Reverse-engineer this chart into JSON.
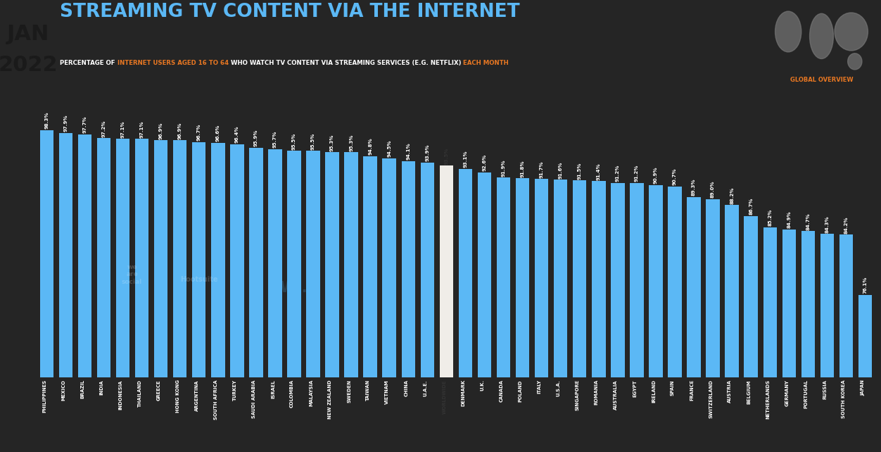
{
  "title": "STREAMING TV CONTENT VIA THE INTERNET",
  "subtitle_parts": [
    {
      "text": "PERCENTAGE OF ",
      "color": "#FFFFFF"
    },
    {
      "text": "INTERNET USERS AGED 16 TO 64",
      "color": "#E87722"
    },
    {
      "text": " WHO WATCH TV CONTENT VIA STREAMING SERVICES (E.G. NETFLIX) ",
      "color": "#FFFFFF"
    },
    {
      "text": "EACH MONTH",
      "color": "#E87722"
    }
  ],
  "date_line1": "JAN",
  "date_line2": "2022",
  "global_label": "GLOBAL OVERVIEW",
  "countries": [
    "PHILIPPINES",
    "MEXICO",
    "BRAZIL",
    "INDIA",
    "INDONESIA",
    "THAILAND",
    "GREECE",
    "HONG KONG",
    "ARGENTINA",
    "SOUTH AFRICA",
    "TURKEY",
    "SAUDI ARABIA",
    "ISRAEL",
    "COLOMBIA",
    "MALAYSIA",
    "NEW ZEALAND",
    "SWEDEN",
    "TAIWAN",
    "VIETNAM",
    "CHINA",
    "U.A.E.",
    "WORLDWIDE",
    "DENMARK",
    "U.K.",
    "CANADA",
    "POLAND",
    "ITALY",
    "U.S.A.",
    "SINGAPORE",
    "ROMANIA",
    "AUSTRALIA",
    "EGYPT",
    "IRELAND",
    "SPAIN",
    "FRANCE",
    "SWITZERLAND",
    "AUSTRIA",
    "BELGIUM",
    "NETHERLANDS",
    "GERMANY",
    "PORTUGAL",
    "RUSSIA",
    "SOUTH KOREA",
    "JAPAN"
  ],
  "values": [
    98.3,
    97.9,
    97.7,
    97.2,
    97.1,
    97.1,
    96.9,
    96.9,
    96.7,
    96.6,
    96.4,
    95.9,
    95.7,
    95.5,
    95.5,
    95.3,
    95.3,
    94.8,
    94.5,
    94.1,
    93.9,
    93.5,
    93.1,
    92.6,
    91.9,
    91.8,
    91.7,
    91.6,
    91.5,
    91.4,
    91.2,
    91.2,
    90.9,
    90.7,
    89.3,
    89.0,
    88.2,
    86.7,
    85.2,
    84.9,
    84.7,
    84.3,
    84.2,
    76.1
  ],
  "worldwide_index": 21,
  "bar_color_normal": "#5BB8F5",
  "bar_color_worldwide": "#F0EDE8",
  "bg_color": "#252525",
  "title_color": "#5BB8F5",
  "date_bg_color": "#5BB8F5",
  "date_text_color": "#1a1a1a",
  "value_label_color": "#FFFFFF",
  "value_label_worldwide_color": "#333333",
  "country_label_color": "#FFFFFF",
  "subtitle_white_color": "#FFFFFF",
  "subtitle_orange_color": "#E87722",
  "global_overview_color": "#E87722",
  "ymin": 65
}
